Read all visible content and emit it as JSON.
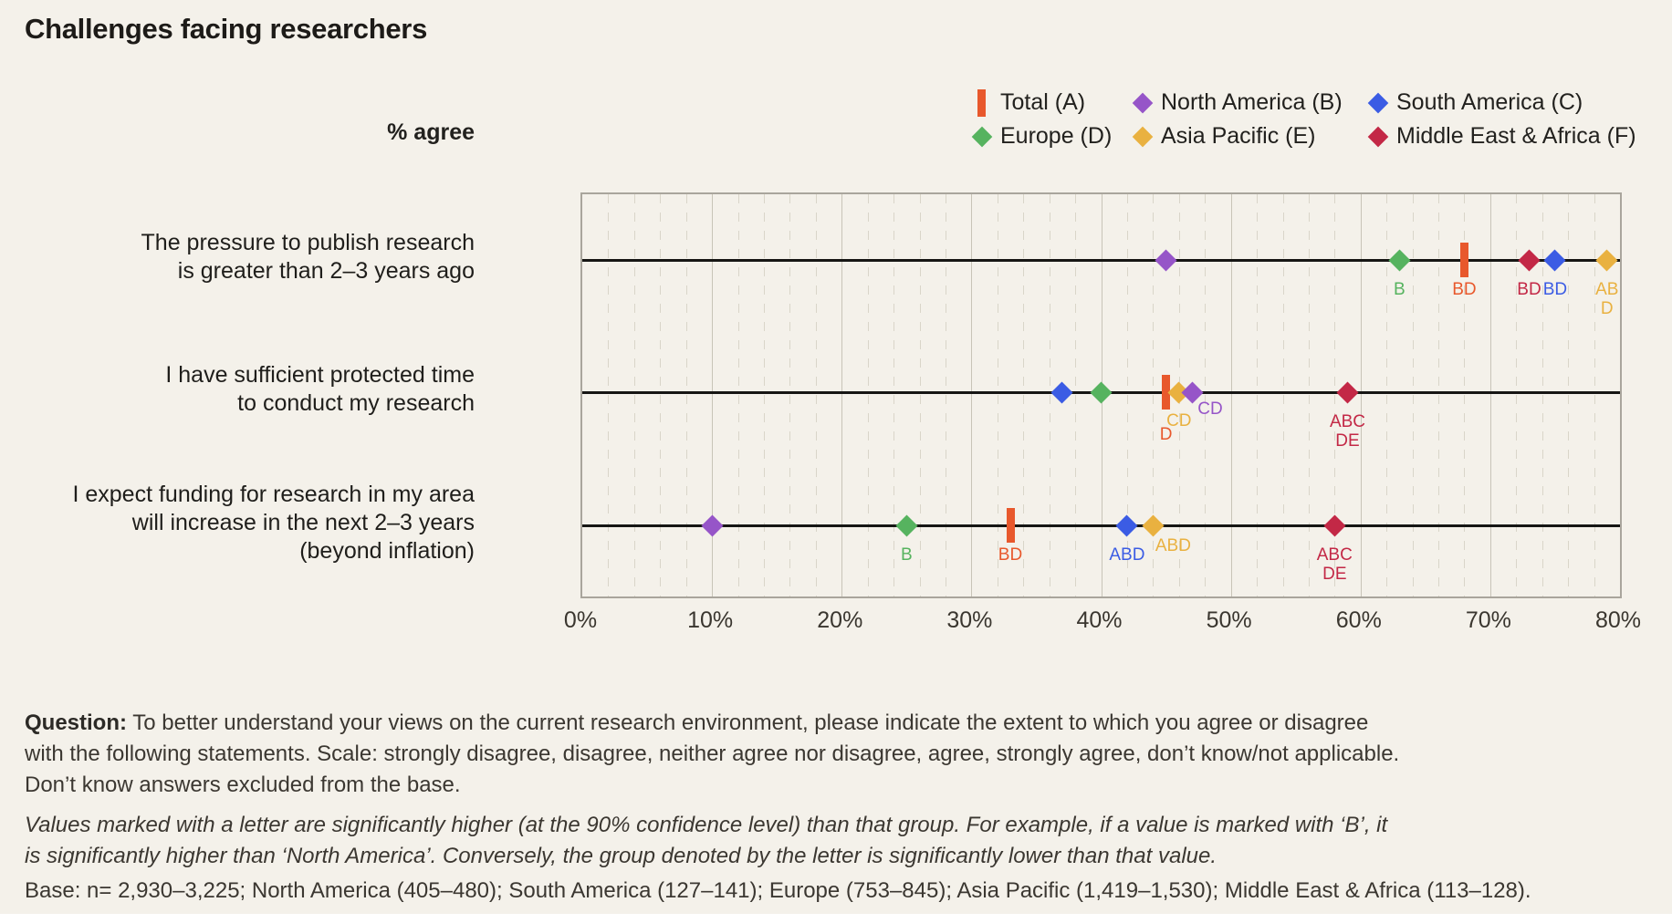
{
  "title": "Challenges facing researchers",
  "colors": {
    "background": "#f4f1ea",
    "total": "#e8582c",
    "north_america": "#9655c8",
    "south_america": "#3b5ce4",
    "europe": "#56b35f",
    "asia_pacific": "#e9b140",
    "middle_east_africa": "#c32846"
  },
  "chart_data": {
    "type": "scatter",
    "title": "Challenges facing researchers",
    "axis_note": "% agree",
    "xlim": [
      0,
      80
    ],
    "x_tick_step": 10,
    "x_minor_step": 2,
    "grid": true,
    "legend_position": "top-right",
    "x_ticks": [
      "0%",
      "10%",
      "20%",
      "30%",
      "40%",
      "50%",
      "60%",
      "70%",
      "80%"
    ],
    "series": [
      {
        "key": "total",
        "label": "Total (A)",
        "letter": "A",
        "color": "#e8582c",
        "marker": "bar"
      },
      {
        "key": "north_america",
        "label": "North America (B)",
        "letter": "B",
        "color": "#9655c8",
        "marker": "diamond"
      },
      {
        "key": "south_america",
        "label": "South America (C)",
        "letter": "C",
        "color": "#3b5ce4",
        "marker": "diamond"
      },
      {
        "key": "europe",
        "label": "Europe (D)",
        "letter": "D",
        "color": "#56b35f",
        "marker": "diamond"
      },
      {
        "key": "asia_pacific",
        "label": "Asia Pacific (E)",
        "letter": "E",
        "color": "#e9b140",
        "marker": "diamond"
      },
      {
        "key": "middle_east_africa",
        "label": "Middle East & Africa (F)",
        "letter": "F",
        "color": "#c32846",
        "marker": "diamond"
      }
    ],
    "legend_rows": [
      [
        "total",
        "north_america",
        "south_america"
      ],
      [
        "europe",
        "asia_pacific",
        "middle_east_africa"
      ]
    ],
    "rows": [
      {
        "category": "The pressure to publish research is greater than 2–3 years ago",
        "category_lines": [
          "The pressure to publish research",
          "is greater than 2–3 years ago"
        ],
        "points": [
          {
            "series": "north_america",
            "value": 45,
            "sig": []
          },
          {
            "series": "europe",
            "value": 63,
            "sig": [
              "B"
            ]
          },
          {
            "series": "total",
            "value": 68,
            "sig": [
              "BD"
            ]
          },
          {
            "series": "middle_east_africa",
            "value": 73,
            "sig": [
              "BD"
            ]
          },
          {
            "series": "south_america",
            "value": 75,
            "sig": [
              "BD"
            ]
          },
          {
            "series": "asia_pacific",
            "value": 79,
            "sig": [
              "AB",
              "D"
            ]
          }
        ]
      },
      {
        "category": "I have sufficient protected time to conduct my research",
        "category_lines": [
          "I have sufficient protected time",
          "to conduct my research"
        ],
        "points": [
          {
            "series": "south_america",
            "value": 37,
            "sig": []
          },
          {
            "series": "europe",
            "value": 40,
            "sig": []
          },
          {
            "series": "total",
            "value": 45,
            "sig": [
              "D"
            ],
            "sig_dy": 36
          },
          {
            "series": "asia_pacific",
            "value": 46,
            "sig": [
              "CD"
            ],
            "sig_dy": 21
          },
          {
            "series": "north_america",
            "value": 47,
            "sig": [
              "CD"
            ],
            "sig_dx": 20,
            "sig_dy": 8
          },
          {
            "series": "middle_east_africa",
            "value": 59,
            "sig": [
              "ABC",
              "DE"
            ]
          }
        ]
      },
      {
        "category": "I expect funding for research in my area will increase in the next 2–3 years (beyond inflation)",
        "category_lines": [
          "I expect funding for research in my area",
          "will increase in the next 2–3 years",
          "(beyond inflation)"
        ],
        "points": [
          {
            "series": "north_america",
            "value": 10,
            "sig": []
          },
          {
            "series": "europe",
            "value": 25,
            "sig": [
              "B"
            ]
          },
          {
            "series": "total",
            "value": 33,
            "sig": [
              "BD"
            ]
          },
          {
            "series": "south_america",
            "value": 42,
            "sig": [
              "ABD"
            ]
          },
          {
            "series": "asia_pacific",
            "value": 44,
            "sig": [
              "ABD"
            ],
            "sig_dx": 22,
            "sig_dy": 12
          },
          {
            "series": "middle_east_africa",
            "value": 58,
            "sig": [
              "ABC",
              "DE"
            ]
          }
        ]
      }
    ]
  },
  "footer": {
    "question_label": "Question:",
    "question_text": " To better understand your views on the current research environment, please indicate the extent to which you agree or disagree with the following statements. Scale: strongly disagree, disagree, neither agree nor disagree, agree, strongly agree, don’t know/not applicable. Don’t know answers excluded from the base.",
    "significance_note": "Values marked with a letter are significantly higher (at the 90% confidence level) than that group. For example, if a value is marked with ‘B’, it is significantly higher than ‘North America’. Conversely, the group denoted by the letter is significantly lower than that value.",
    "base_note": "Base: n= 2,930–3,225; North America (405–480); South America (127–141); Europe (753–845); Asia Pacific (1,419–1,530); Middle East & Africa (113–128)."
  }
}
